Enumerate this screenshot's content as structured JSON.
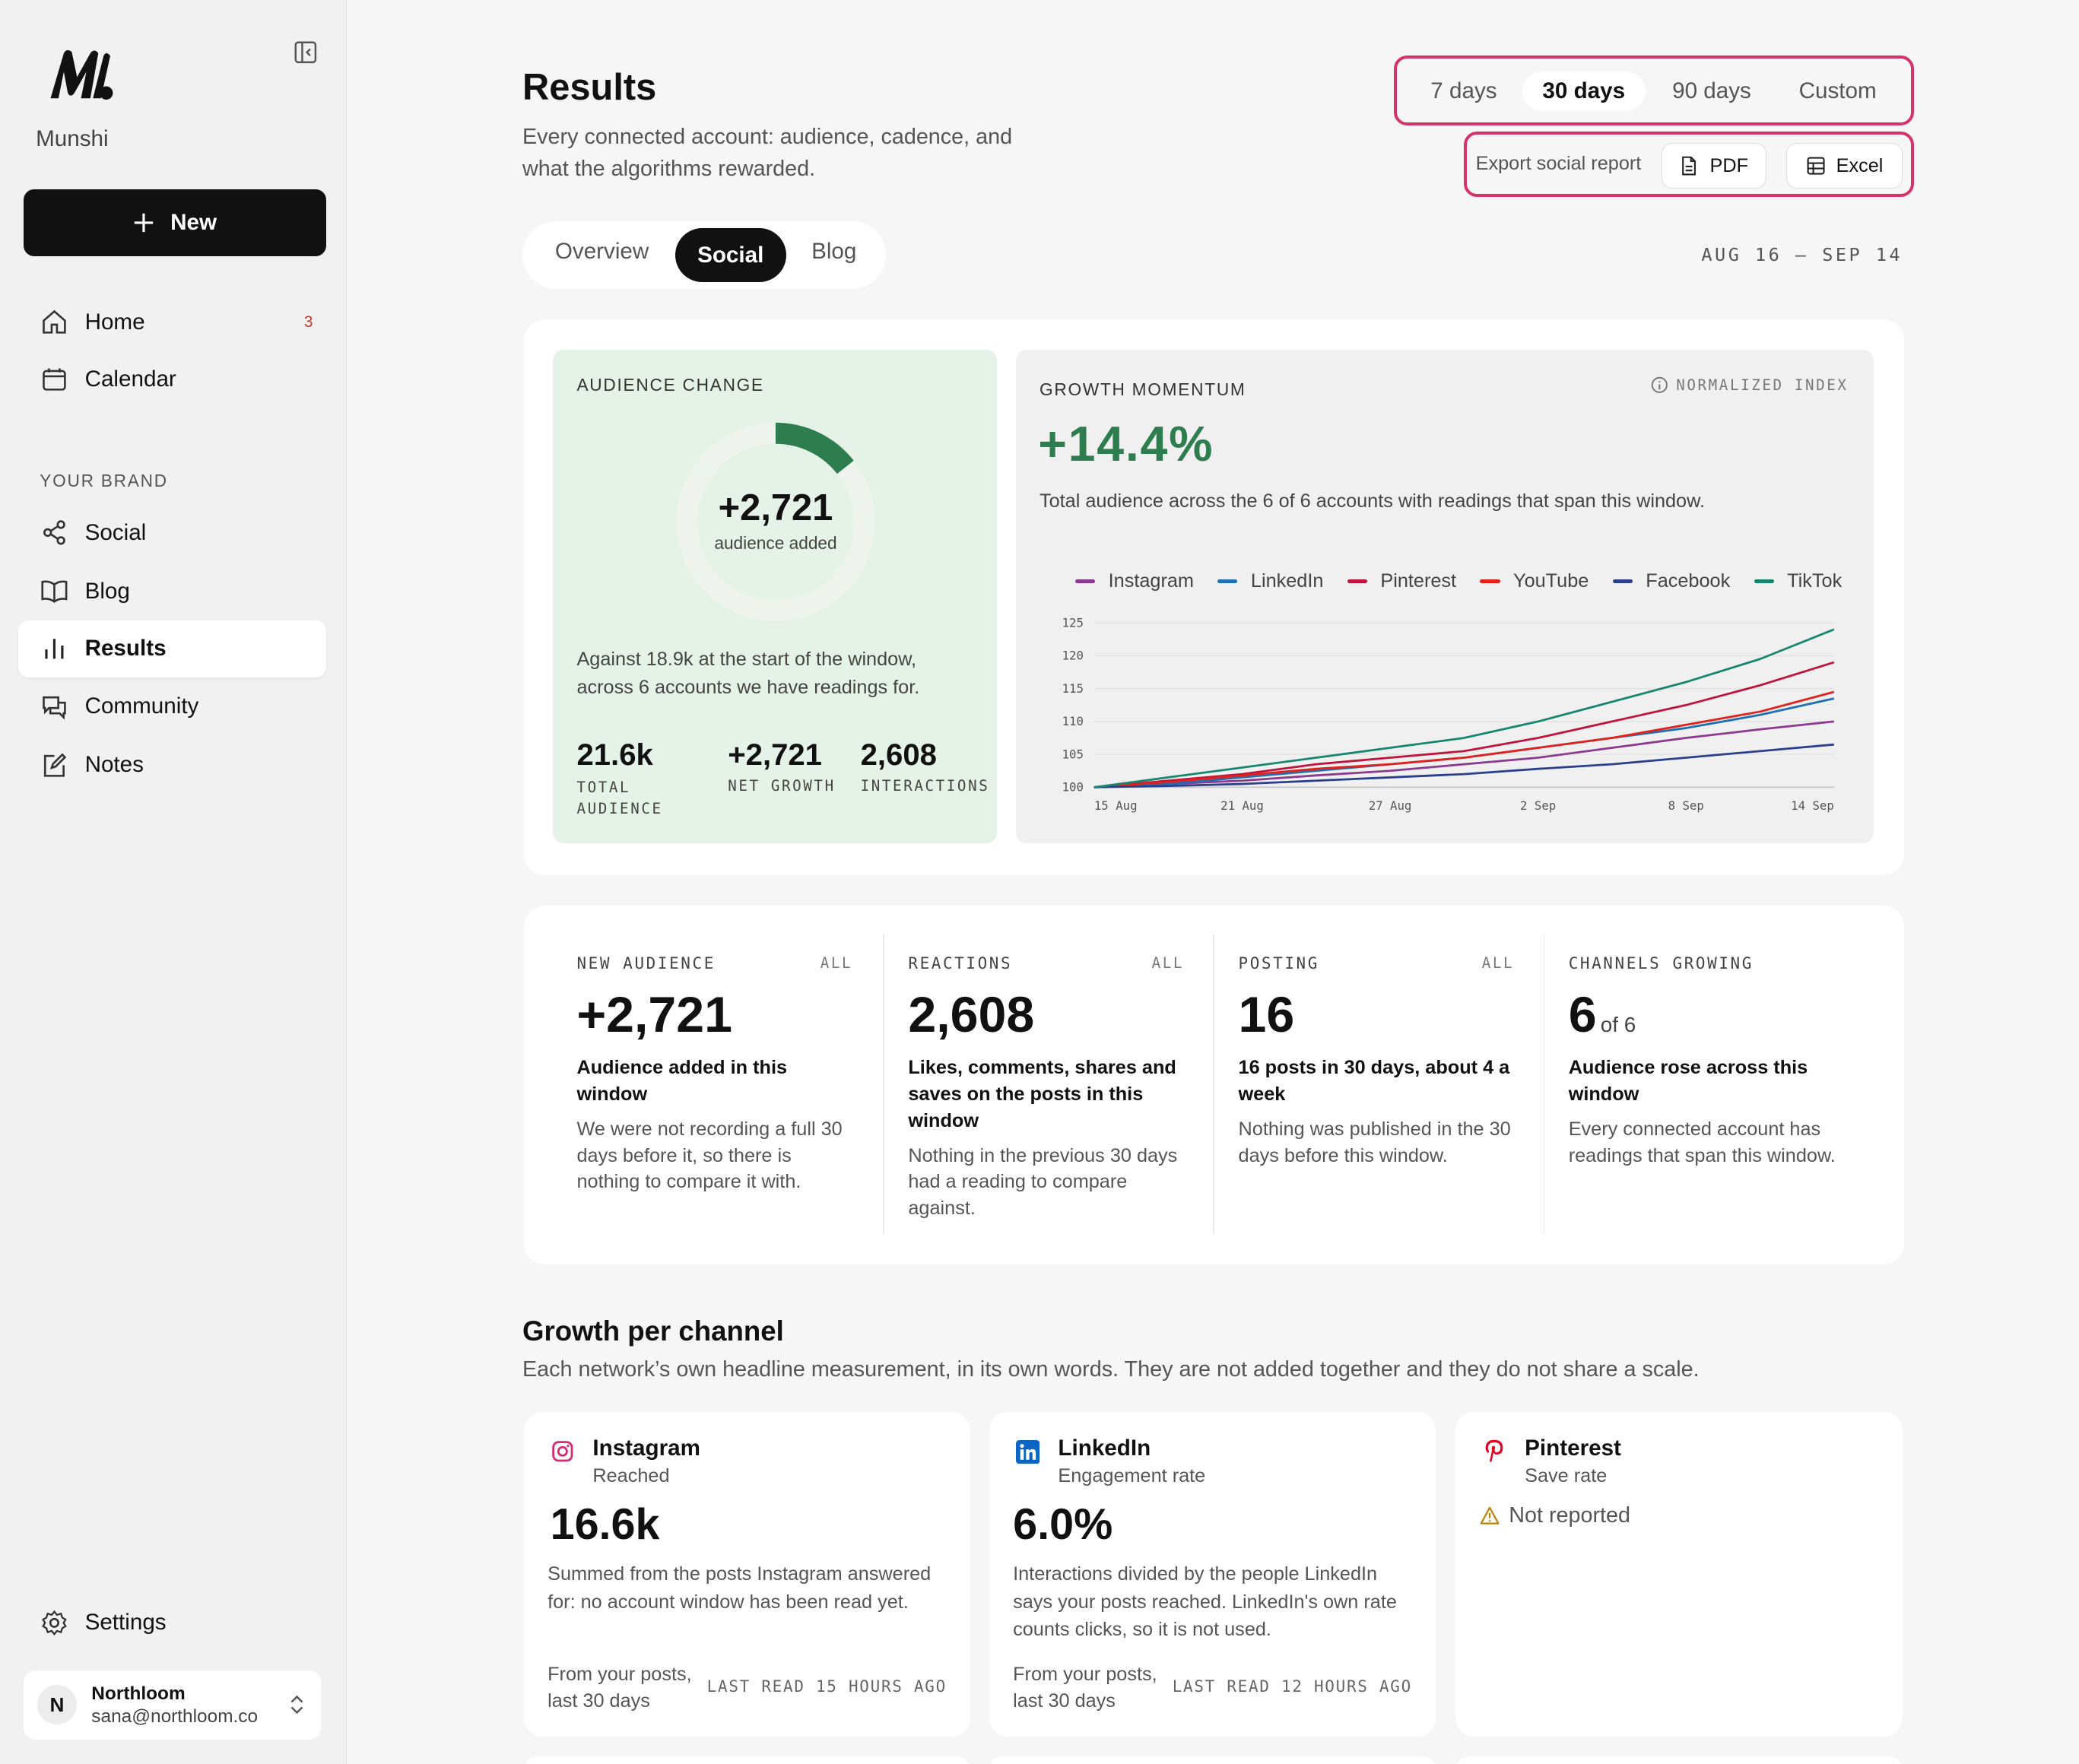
{
  "sidebar": {
    "brand": "Munshi",
    "new_button": "New",
    "nav": [
      {
        "label": "Home",
        "badge": "3"
      },
      {
        "label": "Calendar"
      }
    ],
    "section_label": "YOUR BRAND",
    "brand_nav": [
      "Social",
      "Blog",
      "Results",
      "Community",
      "Notes"
    ],
    "settings": "Settings",
    "account": {
      "initial": "N",
      "name": "Northloom",
      "email": "sana@northloom.co"
    }
  },
  "header": {
    "title": "Results",
    "subtitle": "Every connected account: audience, cadence, and what the algorithms rewarded.",
    "ranges": [
      "7 days",
      "30 days",
      "90 days",
      "Custom"
    ],
    "export_label": "Export social report",
    "export_buttons": [
      "PDF",
      "Excel"
    ],
    "tabs": [
      "Overview",
      "Social",
      "Blog"
    ],
    "date_range": "AUG 16 – SEP 14"
  },
  "audience_change": {
    "label": "AUDIENCE CHANGE",
    "center_value": "+2,721",
    "center_caption": "audience added",
    "note": "Against 18.9k at the start of the window, across 6 accounts we have readings for.",
    "stats": [
      {
        "value": "21.6k",
        "label": "TOTAL AUDIENCE"
      },
      {
        "value": "+2,721",
        "label": "NET GROWTH"
      },
      {
        "value": "2,608",
        "label": "INTERACTIONS"
      }
    ]
  },
  "chart_data": [
    {
      "type": "donut",
      "values": [
        14.4
      ],
      "color": "#2e7d4f",
      "track_color": "#eef3ee"
    },
    {
      "type": "line",
      "title": "GROWTH MOMENTUM",
      "badge": "NORMALIZED INDEX",
      "headline": "+14.4%",
      "subtitle": "Total audience across the 6 of 6 accounts with readings that span this window.",
      "categories": [
        "15 Aug",
        null,
        "21 Aug",
        null,
        "27 Aug",
        null,
        "2 Sep",
        null,
        "8 Sep",
        null,
        "14 Sep"
      ],
      "series": [
        {
          "name": "Instagram",
          "color": "#8b3a8f",
          "values": [
            100,
            100.5,
            101,
            101.8,
            102.5,
            103.5,
            104.5,
            106,
            107.5,
            108.8,
            110
          ]
        },
        {
          "name": "LinkedIn",
          "color": "#1f6fb5",
          "values": [
            100,
            100.5,
            101.5,
            102.5,
            103.5,
            104.5,
            106,
            107.5,
            109,
            111,
            113.5
          ]
        },
        {
          "name": "Pinterest",
          "color": "#c0143c",
          "values": [
            100,
            101,
            102,
            103.5,
            104.5,
            105.5,
            107.5,
            110,
            112.5,
            115.5,
            119
          ]
        },
        {
          "name": "YouTube",
          "color": "#e3211c",
          "values": [
            100,
            100.8,
            101.8,
            102.8,
            103.5,
            104.5,
            106,
            107.5,
            109.5,
            111.5,
            114.5
          ]
        },
        {
          "name": "Facebook",
          "color": "#2b3f8f",
          "values": [
            100,
            100.2,
            100.5,
            101,
            101.5,
            102,
            102.8,
            103.5,
            104.5,
            105.5,
            106.5
          ]
        },
        {
          "name": "TikTok",
          "color": "#17866f",
          "values": [
            100,
            101.5,
            103,
            104.5,
            106,
            107.5,
            110,
            113,
            116,
            119.5,
            124
          ]
        }
      ],
      "ylim": [
        100,
        125
      ],
      "yticks": [
        100,
        105,
        110,
        115,
        120,
        125
      ],
      "grid": true
    }
  ],
  "kpis": [
    {
      "label": "NEW AUDIENCE",
      "scope": "ALL",
      "value": "+2,721",
      "headline": "Audience added in this window",
      "detail": "We were not recording a full 30 days before it, so there is nothing to compare it with."
    },
    {
      "label": "REACTIONS",
      "scope": "ALL",
      "value": "2,608",
      "headline": "Likes, comments, shares and saves on the posts in this window",
      "detail": "Nothing in the previous 30 days had a reading to compare against."
    },
    {
      "label": "POSTING",
      "scope": "ALL",
      "value": "16",
      "headline": "16 posts in 30 days, about 4 a week",
      "detail": "Nothing was published in the 30 days before this window."
    },
    {
      "label": "CHANNELS GROWING",
      "value": "6",
      "suffix": "of 6",
      "headline": "Audience rose across this window",
      "detail": "Every connected account has readings that span this window."
    }
  ],
  "channels_section": {
    "title": "Growth per channel",
    "description": "Each network’s own headline measurement, in its own words. They are not added together and they do not share a scale."
  },
  "channels": [
    {
      "name": "Instagram",
      "metric": "Reached",
      "value": "16.6k",
      "description": "Summed from the posts Instagram answered for: no account window has been read yet.",
      "source": "From your posts, last 30 days",
      "last_read": "LAST READ 15 HOURS AGO"
    },
    {
      "name": "LinkedIn",
      "metric": "Engagement rate",
      "value": "6.0%",
      "description": "Interactions divided by the people LinkedIn says your posts reached. LinkedIn's own rate counts clicks, so it is not used.",
      "source": "From your posts, last 30 days",
      "last_read": "LAST READ 12 HOURS AGO"
    },
    {
      "name": "Pinterest",
      "metric": "Save rate",
      "status": "Not reported"
    }
  ]
}
